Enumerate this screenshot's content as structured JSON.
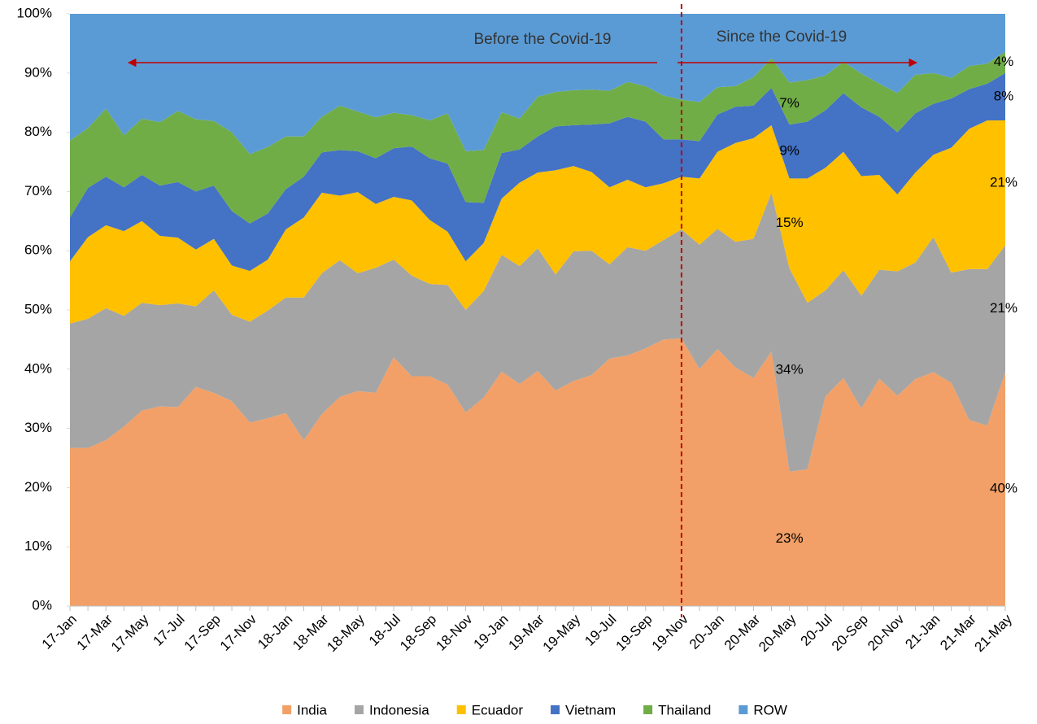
{
  "chart_data": {
    "type": "stacked-area",
    "categories": [
      "17-Jan",
      null,
      "17-Mar",
      null,
      "17-May",
      null,
      "17-Jul",
      null,
      "17-Sep",
      null,
      "17-Nov",
      null,
      "18-Jan",
      null,
      "18-Mar",
      null,
      "18-May",
      null,
      "18-Jul",
      null,
      "18-Sep",
      null,
      "18-Nov",
      null,
      "19-Jan",
      null,
      "19-Mar",
      null,
      "19-May",
      null,
      "19-Jul",
      null,
      "19-Sep",
      null,
      "19-Nov",
      null,
      "20-Jan",
      null,
      "20-Mar",
      null,
      "20-May",
      null,
      "20-Jul",
      null,
      "20-Sep",
      null,
      "20-Nov",
      null,
      "21-Jan",
      null,
      "21-Mar",
      null,
      "21-May"
    ],
    "series": [
      {
        "name": "India",
        "color": "#f2a067",
        "values": [
          26.7,
          26.7,
          28,
          30.3,
          33,
          33.7,
          33.6,
          37,
          36,
          34.6,
          31,
          31.7,
          32.6,
          28,
          32.4,
          35.3,
          36.3,
          36,
          42,
          38.8,
          38.8,
          37.4,
          32.7,
          35.2,
          39.6,
          37.5,
          39.7,
          36.4,
          38,
          39,
          41.8,
          42.3,
          43.5,
          45,
          45.2,
          40,
          43.4,
          40.3,
          38.5,
          43,
          22.7,
          23.1,
          35.4,
          38.5,
          33.4,
          38.4,
          35.5,
          38.3,
          39.5,
          37.7,
          31.4,
          30.5,
          39.5
        ],
        "value_labels": [
          null,
          null,
          null,
          null,
          null,
          null,
          null,
          null,
          null,
          null,
          null,
          null,
          null,
          null,
          null,
          null,
          null,
          null,
          null,
          null,
          null,
          null,
          null,
          null,
          null,
          null,
          null,
          null,
          null,
          null,
          null,
          null,
          null,
          null,
          null,
          null,
          null,
          null,
          null,
          null,
          "23%",
          null,
          null,
          null,
          null,
          null,
          null,
          null,
          null,
          null,
          null,
          null,
          "40%"
        ]
      },
      {
        "name": "Indonesia",
        "color": "#a5a5a5",
        "values": [
          21,
          21.8,
          22.3,
          18.7,
          18.2,
          17.1,
          17.5,
          13.6,
          17.3,
          14.6,
          17,
          18.2,
          19.5,
          24.1,
          23.8,
          23.1,
          19.9,
          21.1,
          16.5,
          17,
          15.6,
          16.8,
          17.3,
          18,
          19.7,
          19.9,
          20.7,
          19.6,
          21.9,
          21,
          15.9,
          18.3,
          16.5,
          16.8,
          18.4,
          21,
          20.3,
          21.2,
          23.5,
          26.8,
          34.3,
          28.1,
          17.9,
          18.2,
          19,
          18.4,
          21,
          19.7,
          22.8,
          18.6,
          25.5,
          26.4,
          21.4
        ],
        "value_labels": [
          null,
          null,
          null,
          null,
          null,
          null,
          null,
          null,
          null,
          null,
          null,
          null,
          null,
          null,
          null,
          null,
          null,
          null,
          null,
          null,
          null,
          null,
          null,
          null,
          null,
          null,
          null,
          null,
          null,
          null,
          null,
          null,
          null,
          null,
          null,
          null,
          null,
          null,
          null,
          null,
          "34%",
          null,
          null,
          null,
          null,
          null,
          null,
          null,
          null,
          null,
          null,
          null,
          "21%"
        ]
      },
      {
        "name": "Ecuador",
        "color": "#ffc000",
        "values": [
          10.5,
          13.8,
          14,
          14.3,
          13.8,
          11.7,
          11.1,
          9.6,
          8.7,
          8.3,
          8.6,
          8.6,
          11.5,
          13.5,
          13.6,
          10.9,
          13.7,
          10.8,
          10.6,
          12.7,
          10.8,
          9,
          8.2,
          8.1,
          9.5,
          14.1,
          12.8,
          17.6,
          14.4,
          13.3,
          13,
          11.4,
          10.7,
          9.6,
          8.9,
          11.2,
          13,
          16.7,
          17,
          11.4,
          15.2,
          21,
          20.7,
          20,
          20.2,
          16,
          13,
          15.2,
          13.9,
          21.1,
          23.7,
          25.1,
          21.1
        ],
        "value_labels": [
          null,
          null,
          null,
          null,
          null,
          null,
          null,
          null,
          null,
          null,
          null,
          null,
          null,
          null,
          null,
          null,
          null,
          null,
          null,
          null,
          null,
          null,
          null,
          null,
          null,
          null,
          null,
          null,
          null,
          null,
          null,
          null,
          null,
          null,
          null,
          null,
          null,
          null,
          null,
          null,
          "15%",
          null,
          null,
          null,
          null,
          null,
          null,
          null,
          null,
          null,
          null,
          null,
          "21%"
        ]
      },
      {
        "name": "Vietnam",
        "color": "#4472c4",
        "values": [
          7.4,
          8.3,
          8.2,
          7.4,
          7.8,
          8.5,
          9.4,
          9.8,
          9,
          9.2,
          8,
          7.8,
          6.8,
          6.9,
          6.8,
          7.7,
          6.9,
          7.7,
          8.2,
          9.1,
          10.4,
          11.5,
          10,
          6.8,
          7.7,
          5.6,
          6.1,
          7.4,
          6.9,
          8,
          10.8,
          10.6,
          11.1,
          7.4,
          6.3,
          6.3,
          6.3,
          6.1,
          5.5,
          6.3,
          9.1,
          9.6,
          9.7,
          9.9,
          11.6,
          9.8,
          10.5,
          10,
          8.6,
          8.3,
          6.7,
          6.2,
          8
        ],
        "value_labels": [
          null,
          null,
          null,
          null,
          null,
          null,
          null,
          null,
          null,
          null,
          null,
          null,
          null,
          null,
          null,
          null,
          null,
          null,
          null,
          null,
          null,
          null,
          null,
          null,
          null,
          null,
          null,
          null,
          null,
          null,
          null,
          null,
          null,
          null,
          null,
          null,
          null,
          null,
          null,
          null,
          "9%",
          null,
          null,
          null,
          null,
          null,
          null,
          null,
          null,
          null,
          null,
          null,
          "8%"
        ]
      },
      {
        "name": "Thailand",
        "color": "#70ad47",
        "values": [
          13,
          10.1,
          11.5,
          8.8,
          9.5,
          10.7,
          12,
          12.2,
          10.9,
          13.3,
          11.7,
          11.2,
          8.9,
          6.8,
          6,
          7.5,
          6.7,
          6.9,
          6,
          5.3,
          6.4,
          8.5,
          8.6,
          8.9,
          6.9,
          5.2,
          6.7,
          5.8,
          5.9,
          5.9,
          5.5,
          5.9,
          6,
          7.4,
          6.7,
          6.6,
          4.6,
          3.5,
          4.8,
          5,
          7.1,
          7,
          5.9,
          5.3,
          5.7,
          5.6,
          6.6,
          6.5,
          5.2,
          3.5,
          3.9,
          3.4,
          3.6
        ],
        "value_labels": [
          null,
          null,
          null,
          null,
          null,
          null,
          null,
          null,
          null,
          null,
          null,
          null,
          null,
          null,
          null,
          null,
          null,
          null,
          null,
          null,
          null,
          null,
          null,
          null,
          null,
          null,
          null,
          null,
          null,
          null,
          null,
          null,
          null,
          null,
          null,
          null,
          null,
          null,
          null,
          null,
          "7%",
          null,
          null,
          null,
          null,
          null,
          null,
          null,
          null,
          null,
          null,
          null,
          "4%"
        ]
      },
      {
        "name": "ROW",
        "color": "#5b9bd5",
        "values": [
          21.4,
          19.3,
          16,
          20.5,
          17.7,
          18.3,
          16.4,
          17.8,
          18.1,
          20,
          23.7,
          22.5,
          20.7,
          20.7,
          17.4,
          15.5,
          16.5,
          17.5,
          16.7,
          17.1,
          18,
          16.8,
          23.2,
          23,
          16.6,
          17.7,
          14,
          13.2,
          12.9,
          12.8,
          13,
          11.5,
          12.2,
          13.8,
          14.5,
          14.9,
          12.4,
          12.2,
          10.7,
          7.5,
          11.6,
          11.2,
          10.4,
          8.1,
          10.1,
          11.8,
          13.4,
          10.3,
          10,
          10.8,
          8.8,
          8.4,
          6.4
        ]
      }
    ],
    "ylim": [
      0,
      100
    ],
    "yticks": [
      {
        "value": 0,
        "label": "0%"
      },
      {
        "value": 10,
        "label": "10%"
      },
      {
        "value": 20,
        "label": "20%"
      },
      {
        "value": 30,
        "label": "30%"
      },
      {
        "value": 40,
        "label": "40%"
      },
      {
        "value": 50,
        "label": "50%"
      },
      {
        "value": 60,
        "label": "60%"
      },
      {
        "value": 70,
        "label": "70%"
      },
      {
        "value": 80,
        "label": "80%"
      },
      {
        "value": 90,
        "label": "90%"
      },
      {
        "value": 100,
        "label": "100%"
      }
    ],
    "annotations": [
      "Before the Covid-19",
      "Since the Covid-19"
    ],
    "legend": "bottom"
  }
}
